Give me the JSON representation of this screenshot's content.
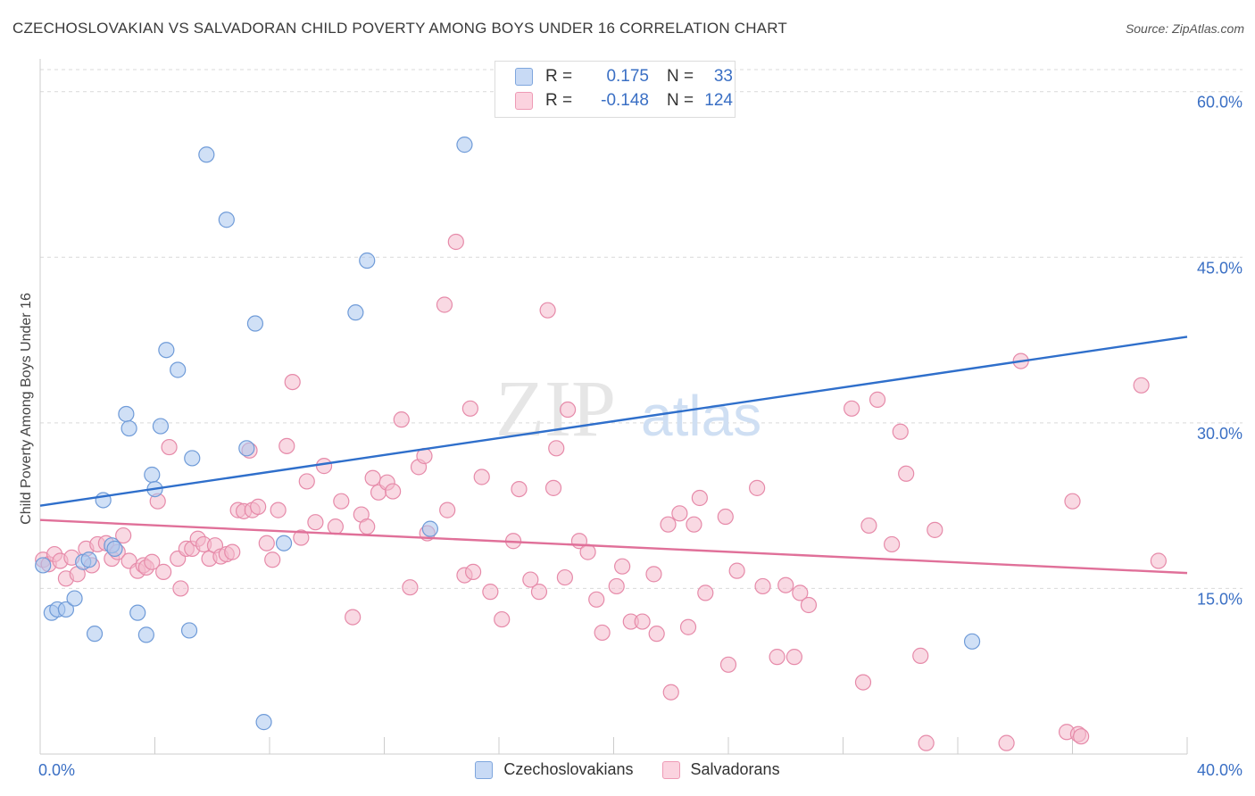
{
  "title": "CZECHOSLOVAKIAN VS SALVADORAN CHILD POVERTY AMONG BOYS UNDER 16 CORRELATION CHART",
  "source": "Source: ZipAtlas.com",
  "watermark": {
    "zip": "ZIP",
    "atlas": "atlas"
  },
  "legend_top": {
    "rows": [
      {
        "r_label": "R =",
        "r_value": "0.175",
        "n_label": "N =",
        "n_value": "33"
      },
      {
        "r_label": "R =",
        "r_value": "-0.148",
        "n_label": "N =",
        "n_value": "124"
      }
    ]
  },
  "legend_bottom": {
    "items": [
      "Czechoslovakians",
      "Salvadorans"
    ]
  },
  "colors": {
    "blue_fill": "#a9c6ee",
    "blue_stroke": "#6f9bd8",
    "blue_line": "#2f6fcb",
    "pink_fill": "#f4b9cc",
    "pink_stroke": "#e68aa9",
    "pink_line": "#e07099",
    "grid": "#d9d9d9",
    "tick_label": "#3a6fc4"
  },
  "chart_data": {
    "type": "scatter",
    "title": "CZECHOSLOVAKIAN VS SALVADORAN CHILD POVERTY AMONG BOYS UNDER 16 CORRELATION CHART",
    "xlabel": "",
    "ylabel": "Child Poverty Among Boys Under 16",
    "xlim": [
      0,
      40
    ],
    "ylim": [
      0,
      62
    ],
    "x_tick_labels": [
      "0.0%",
      "40.0%"
    ],
    "y_ticks": [
      15,
      30,
      45,
      60
    ],
    "y_tick_labels": [
      "15.0%",
      "30.0%",
      "45.0%",
      "60.0%"
    ],
    "grid": true,
    "legend_position": "bottom",
    "series": [
      {
        "name": "Czechoslovakians",
        "r": 0.175,
        "n": 33,
        "trend": {
          "x": [
            0,
            40
          ],
          "y": [
            22.5,
            37.8
          ]
        },
        "points": [
          [
            0.1,
            17.1
          ],
          [
            0.4,
            12.8
          ],
          [
            0.6,
            13.1
          ],
          [
            0.9,
            13.1
          ],
          [
            1.2,
            14.1
          ],
          [
            1.5,
            17.4
          ],
          [
            1.7,
            17.6
          ],
          [
            1.9,
            10.9
          ],
          [
            2.2,
            23.0
          ],
          [
            2.5,
            18.9
          ],
          [
            2.6,
            18.6
          ],
          [
            3.0,
            30.8
          ],
          [
            3.1,
            29.5
          ],
          [
            3.4,
            12.8
          ],
          [
            3.7,
            10.8
          ],
          [
            3.9,
            25.3
          ],
          [
            4.0,
            24.0
          ],
          [
            4.2,
            29.7
          ],
          [
            4.4,
            36.6
          ],
          [
            4.8,
            34.8
          ],
          [
            5.2,
            11.2
          ],
          [
            5.3,
            26.8
          ],
          [
            5.8,
            54.3
          ],
          [
            6.5,
            48.4
          ],
          [
            7.2,
            27.7
          ],
          [
            7.5,
            39.0
          ],
          [
            7.8,
            2.9
          ],
          [
            8.5,
            19.1
          ],
          [
            11.0,
            40.0
          ],
          [
            11.4,
            44.7
          ],
          [
            13.6,
            20.4
          ],
          [
            14.8,
            55.2
          ],
          [
            32.5,
            10.2
          ]
        ]
      },
      {
        "name": "Salvadorans",
        "r": -0.148,
        "n": 124,
        "trend": {
          "x": [
            0,
            40
          ],
          "y": [
            21.2,
            16.4
          ]
        },
        "points": [
          [
            0.1,
            17.6
          ],
          [
            0.3,
            17.2
          ],
          [
            0.5,
            18.1
          ],
          [
            0.7,
            17.5
          ],
          [
            0.9,
            15.9
          ],
          [
            1.1,
            17.8
          ],
          [
            1.3,
            16.3
          ],
          [
            1.6,
            18.6
          ],
          [
            1.8,
            17.1
          ],
          [
            2.0,
            19.0
          ],
          [
            2.3,
            19.1
          ],
          [
            2.5,
            17.7
          ],
          [
            2.7,
            18.3
          ],
          [
            2.9,
            19.8
          ],
          [
            3.1,
            17.5
          ],
          [
            3.4,
            16.6
          ],
          [
            3.6,
            17.1
          ],
          [
            3.7,
            16.9
          ],
          [
            3.9,
            17.4
          ],
          [
            4.1,
            22.9
          ],
          [
            4.3,
            16.5
          ],
          [
            4.5,
            27.8
          ],
          [
            4.8,
            17.7
          ],
          [
            4.9,
            15.0
          ],
          [
            5.1,
            18.6
          ],
          [
            5.3,
            18.6
          ],
          [
            5.5,
            19.5
          ],
          [
            5.7,
            19.0
          ],
          [
            5.9,
            17.7
          ],
          [
            6.1,
            18.9
          ],
          [
            6.3,
            17.9
          ],
          [
            6.5,
            18.1
          ],
          [
            6.7,
            18.3
          ],
          [
            6.9,
            22.1
          ],
          [
            7.1,
            22.0
          ],
          [
            7.3,
            27.5
          ],
          [
            7.4,
            22.1
          ],
          [
            7.6,
            22.4
          ],
          [
            7.9,
            19.1
          ],
          [
            8.1,
            17.6
          ],
          [
            8.3,
            22.1
          ],
          [
            8.8,
            33.7
          ],
          [
            8.6,
            27.9
          ],
          [
            9.1,
            19.6
          ],
          [
            9.3,
            24.7
          ],
          [
            9.6,
            21.0
          ],
          [
            9.9,
            26.1
          ],
          [
            10.3,
            20.6
          ],
          [
            10.5,
            22.9
          ],
          [
            10.9,
            12.4
          ],
          [
            11.2,
            21.7
          ],
          [
            11.4,
            20.6
          ],
          [
            11.6,
            25.0
          ],
          [
            11.8,
            23.7
          ],
          [
            12.1,
            24.6
          ],
          [
            12.3,
            23.8
          ],
          [
            12.6,
            30.3
          ],
          [
            12.9,
            15.1
          ],
          [
            13.2,
            26.0
          ],
          [
            13.4,
            27.0
          ],
          [
            13.5,
            20.0
          ],
          [
            14.1,
            40.7
          ],
          [
            14.2,
            22.1
          ],
          [
            14.5,
            46.4
          ],
          [
            14.8,
            16.2
          ],
          [
            15.0,
            31.3
          ],
          [
            15.1,
            16.5
          ],
          [
            15.4,
            25.1
          ],
          [
            15.7,
            14.7
          ],
          [
            16.1,
            12.2
          ],
          [
            16.5,
            19.3
          ],
          [
            16.7,
            24.0
          ],
          [
            17.1,
            15.8
          ],
          [
            17.4,
            14.7
          ],
          [
            17.7,
            40.2
          ],
          [
            17.9,
            24.1
          ],
          [
            18.0,
            27.7
          ],
          [
            18.3,
            16.0
          ],
          [
            18.4,
            31.2
          ],
          [
            18.8,
            19.3
          ],
          [
            19.1,
            18.3
          ],
          [
            19.4,
            14.0
          ],
          [
            19.6,
            11.0
          ],
          [
            20.1,
            15.2
          ],
          [
            20.3,
            17.0
          ],
          [
            20.6,
            12.0
          ],
          [
            21.0,
            12.0
          ],
          [
            21.4,
            16.3
          ],
          [
            21.5,
            10.9
          ],
          [
            21.9,
            20.8
          ],
          [
            22.0,
            5.6
          ],
          [
            22.3,
            21.8
          ],
          [
            22.6,
            11.5
          ],
          [
            22.8,
            20.8
          ],
          [
            23.0,
            23.2
          ],
          [
            23.2,
            14.6
          ],
          [
            23.9,
            21.5
          ],
          [
            24.0,
            8.1
          ],
          [
            24.3,
            16.6
          ],
          [
            25.0,
            24.1
          ],
          [
            25.2,
            15.2
          ],
          [
            25.7,
            8.8
          ],
          [
            26.0,
            15.3
          ],
          [
            26.3,
            8.8
          ],
          [
            26.5,
            14.6
          ],
          [
            26.8,
            13.5
          ],
          [
            28.3,
            31.3
          ],
          [
            28.9,
            20.7
          ],
          [
            28.7,
            6.5
          ],
          [
            29.2,
            32.1
          ],
          [
            30.0,
            29.2
          ],
          [
            30.2,
            25.4
          ],
          [
            30.7,
            8.9
          ],
          [
            30.9,
            1.0
          ],
          [
            33.7,
            1.0
          ],
          [
            34.2,
            35.6
          ],
          [
            36.0,
            22.9
          ],
          [
            38.4,
            33.4
          ],
          [
            39.0,
            17.5
          ],
          [
            29.7,
            19.0
          ],
          [
            31.2,
            20.3
          ],
          [
            35.8,
            2.0
          ],
          [
            36.2,
            1.8
          ],
          [
            36.3,
            1.6
          ]
        ]
      }
    ]
  }
}
